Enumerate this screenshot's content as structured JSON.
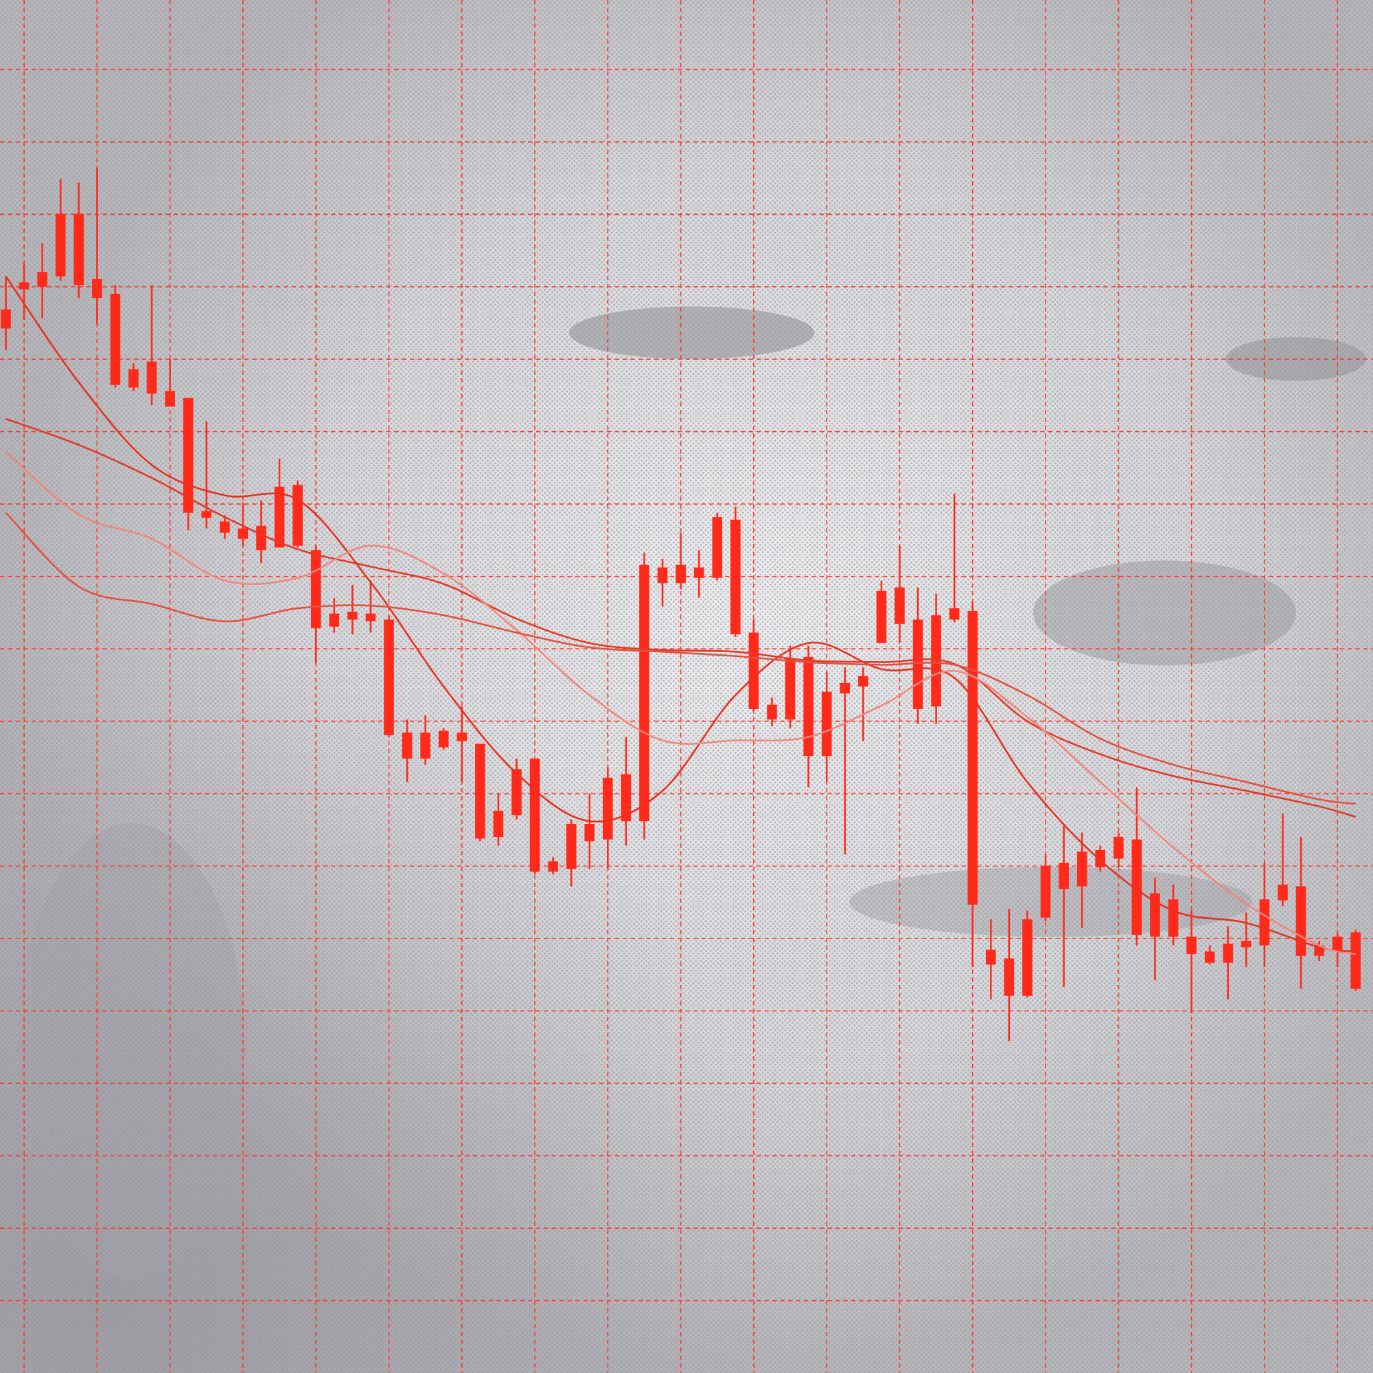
{
  "chart_data": {
    "type": "candlestick",
    "color": "#ff2a1a",
    "grid": true,
    "grid_color": "#ff3b2b",
    "xlim": [
      -0.32,
      74.95
    ],
    "xticks": [
      1,
      5,
      9,
      13,
      17,
      21,
      25,
      29,
      33,
      37,
      41,
      45,
      49,
      53,
      57,
      61,
      65,
      69,
      73
    ],
    "ylim": [
      -12,
      1568
    ],
    "yticks": [
      1488,
      1404.67,
      1321.33,
      1238,
      1154.67,
      1071.33,
      988,
      904.67,
      821.33,
      738,
      654.67,
      571.33,
      488,
      404.67,
      321.33,
      238,
      154.67,
      71.33
    ],
    "x": [
      0,
      1,
      2,
      3,
      4,
      5,
      6,
      7,
      8,
      9,
      10,
      11,
      12,
      13,
      14,
      15,
      16,
      17,
      18,
      19,
      20,
      21,
      22,
      23,
      24,
      25,
      26,
      27,
      28,
      29,
      30,
      31,
      32,
      33,
      34,
      35,
      36,
      37,
      38,
      39,
      40,
      41,
      42,
      43,
      44,
      45,
      46,
      47,
      48,
      49,
      50,
      51,
      52,
      53,
      54,
      55,
      56,
      57,
      58,
      59,
      60,
      61,
      62,
      63,
      64,
      65,
      66,
      67,
      68,
      69,
      70,
      71,
      72,
      73,
      74
    ],
    "open": [
      1212,
      1243,
      1255,
      1322,
      1322,
      1247,
      1230,
      1143,
      1152,
      1118,
      1110,
      980,
      968,
      960,
      963,
      1008,
      1010,
      935,
      862,
      864,
      862,
      855,
      725,
      725,
      727,
      725,
      712,
      635,
      683,
      695,
      577,
      620,
      620,
      673,
      677,
      918,
      915,
      918,
      915,
      973,
      970,
      840,
      757,
      810,
      812,
      772,
      782,
      790,
      888,
      892,
      855,
      860,
      868,
      865,
      475,
      465,
      510,
      572,
      575,
      588,
      590,
      605,
      602,
      540,
      533,
      490,
      473,
      482,
      485,
      533,
      550,
      548,
      480,
      490,
      495
    ],
    "close": [
      1190,
      1235,
      1238,
      1250,
      1240,
      1225,
      1125,
      1122,
      1115,
      1100,
      978,
      972,
      955,
      948,
      935,
      938,
      940,
      845,
      847,
      855,
      853,
      722,
      695,
      695,
      708,
      715,
      603,
      605,
      630,
      565,
      565,
      568,
      600,
      602,
      623,
      623,
      897,
      897,
      903,
      903,
      838,
      752,
      740,
      740,
      698,
      698,
      770,
      778,
      828,
      850,
      752,
      755,
      855,
      527,
      458,
      422,
      422,
      512,
      545,
      548,
      570,
      580,
      492,
      490,
      490,
      470,
      460,
      460,
      478,
      480,
      532,
      468,
      468,
      475,
      430
    ],
    "high": [
      1250,
      1265,
      1288,
      1362,
      1358,
      1375,
      1240,
      1150,
      1240,
      1155,
      1110,
      1083,
      975,
      990,
      992,
      1040,
      1015,
      940,
      880,
      895,
      900,
      860,
      740,
      745,
      730,
      755,
      712,
      655,
      695,
      695,
      582,
      625,
      655,
      685,
      720,
      932,
      925,
      955,
      935,
      978,
      985,
      855,
      765,
      825,
      825,
      795,
      800,
      800,
      900,
      940,
      892,
      885,
      1000,
      875,
      510,
      522,
      520,
      585,
      618,
      610,
      595,
      610,
      662,
      558,
      550,
      520,
      480,
      502,
      518,
      575,
      632,
      605,
      485,
      495,
      498
    ],
    "low": [
      1165,
      1200,
      1202,
      1245,
      1225,
      1195,
      1122,
      1118,
      1102,
      1100,
      958,
      960,
      948,
      940,
      920,
      938,
      938,
      805,
      840,
      838,
      840,
      720,
      668,
      688,
      705,
      668,
      600,
      595,
      625,
      562,
      562,
      548,
      568,
      568,
      595,
      602,
      870,
      890,
      880,
      900,
      835,
      750,
      732,
      730,
      662,
      668,
      585,
      715,
      828,
      828,
      735,
      735,
      852,
      455,
      418,
      370,
      420,
      508,
      432,
      500,
      565,
      570,
      480,
      440,
      480,
      402,
      458,
      418,
      455,
      455,
      525,
      430,
      462,
      455,
      428
    ],
    "lines": [
      {
        "color": "#e8301e",
        "x": [
          0,
          4,
          8,
          12,
          16,
          20,
          24,
          28,
          32,
          36,
          40,
          44,
          48,
          52,
          56,
          60,
          64,
          68,
          72,
          74
        ],
        "values": [
          1250,
          1128,
          1033,
          998,
          993,
          898,
          778,
          678,
          623,
          658,
          768,
          828,
          798,
          788,
          668,
          578,
          520,
          506,
          478,
          473
        ]
      },
      {
        "color": "#e23a28",
        "x": [
          0,
          4,
          8,
          12,
          16,
          20,
          24,
          28,
          32,
          36,
          40,
          44,
          48,
          52,
          56,
          60,
          64,
          68,
          72,
          74
        ],
        "values": [
          1086,
          1056,
          1018,
          973,
          936,
          916,
          896,
          856,
          828,
          820,
          818,
          808,
          806,
          804,
          738,
          700,
          675,
          658,
          640,
          628
        ]
      },
      {
        "color": "#f2877c",
        "x": [
          0,
          4,
          8,
          12,
          16,
          20,
          24,
          28,
          32,
          36,
          40,
          44,
          48,
          52,
          56,
          60,
          64,
          68,
          72,
          74
        ],
        "values": [
          1048,
          976,
          948,
          900,
          903,
          940,
          908,
          843,
          768,
          716,
          716,
          720,
          756,
          796,
          743,
          668,
          593,
          528,
          480,
          470
        ]
      },
      {
        "color": "#e6503e",
        "x": [
          0,
          4,
          8,
          12,
          16,
          20,
          24,
          28,
          32,
          36,
          40,
          44,
          48,
          52,
          56,
          60,
          64,
          68,
          72,
          74
        ],
        "values": [
          978,
          893,
          873,
          853,
          868,
          871,
          860,
          840,
          823,
          818,
          813,
          806,
          803,
          803,
          768,
          718,
          688,
          668,
          648,
          643
        ]
      }
    ]
  }
}
